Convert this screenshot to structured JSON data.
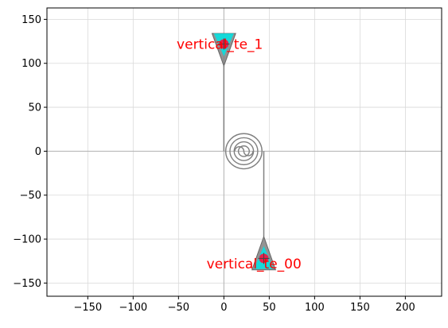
{
  "chart_data": {
    "type": "scatter",
    "title": "",
    "xlabel": "",
    "ylabel": "",
    "xlim": [
      -195,
      240
    ],
    "ylim": [
      -165,
      163
    ],
    "xticks": [
      -150,
      -100,
      -50,
      0,
      50,
      100,
      150,
      200
    ],
    "yticks": [
      -150,
      -100,
      -50,
      0,
      50,
      100,
      150
    ],
    "xtick_labels": [
      "−150",
      "−100",
      "−50",
      "0",
      "50",
      "100",
      "150",
      "200"
    ],
    "ytick_labels": [
      "−150",
      "−100",
      "−50",
      "0",
      "50",
      "100",
      "150"
    ],
    "grid": true,
    "axis_lines_at_zero": true,
    "colors": {
      "grid": "#d9d9d9",
      "zero_axis": "#b3b3b3",
      "waveguide": "#808080",
      "taper_fill": "#808080",
      "port_fill": "#00e5e5",
      "marker": "#e8204a",
      "label": "#ff0000"
    },
    "waveguide": {
      "path": [
        [
          0,
          97
        ],
        [
          0,
          0
        ]
      ],
      "spiral_center": [
        22,
        0
      ],
      "spiral_turns": 4,
      "spiral_inner_radius": 6,
      "spiral_outer_radius": 20,
      "exit_path": [
        [
          44,
          0
        ],
        [
          44,
          -97
        ]
      ]
    },
    "tapers": [
      {
        "tip": [
          0,
          97
        ],
        "base_y": 134,
        "half_width": 13
      },
      {
        "tip": [
          44,
          -97
        ],
        "base_y": -135,
        "half_width": 13
      }
    ],
    "ports": [
      {
        "name": "vertical_te_1",
        "x": 0,
        "y": 122,
        "label_x": -52,
        "label_y": 122
      },
      {
        "name": "vertical_te_00",
        "x": 44,
        "y": -122,
        "label_x": -19,
        "label_y": -128
      }
    ]
  }
}
